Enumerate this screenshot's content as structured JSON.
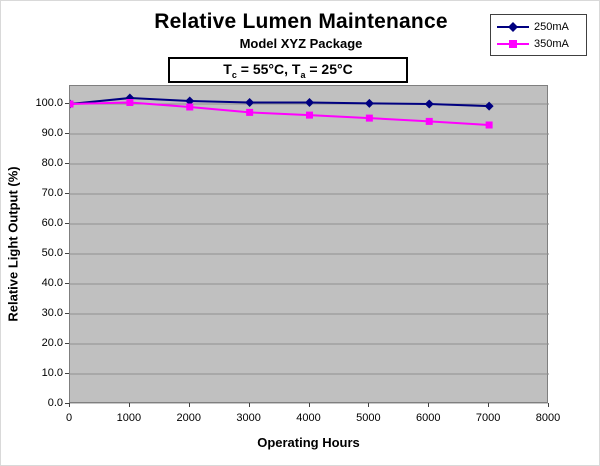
{
  "header": {
    "title": "Relative Lumen Maintenance",
    "subtitle": "Model XYZ Package",
    "condition": {
      "t1": "T",
      "sub1": "c",
      "mid": " = 55°C, T",
      "sub2": "a",
      "end": " = 25°C"
    }
  },
  "chart_data": {
    "type": "line",
    "title": "Relative Lumen Maintenance",
    "subtitle": "Model XYZ Package",
    "annotation": "Tc = 55°C, Ta = 25°C",
    "xlabel": "Operating Hours",
    "ylabel": "Relative Light Output (%)",
    "x": [
      0,
      1000,
      2000,
      3000,
      4000,
      5000,
      6000,
      7000
    ],
    "series": [
      {
        "name": "250mA",
        "color": "#000080",
        "marker": "diamond",
        "values": [
          100.0,
          102.0,
          101.0,
          100.5,
          100.5,
          100.2,
          100.0,
          99.3
        ]
      },
      {
        "name": "350mA",
        "color": "#FF00FF",
        "marker": "square",
        "values": [
          100.0,
          100.5,
          99.0,
          97.2,
          96.3,
          95.3,
          94.2,
          93.0
        ]
      }
    ],
    "xlim": [
      0,
      8000
    ],
    "ylim": [
      0,
      100
    ],
    "x_ticks": [
      0,
      1000,
      2000,
      3000,
      4000,
      5000,
      6000,
      7000,
      8000
    ],
    "y_ticks": [
      0,
      10,
      20,
      30,
      40,
      50,
      60,
      70,
      80,
      90,
      100
    ],
    "y_tick_decimals": 1,
    "grid": true,
    "legend_position": "top-right",
    "plot_bg": "#C0C0C0",
    "gridline_color": "#8f8f8f"
  }
}
